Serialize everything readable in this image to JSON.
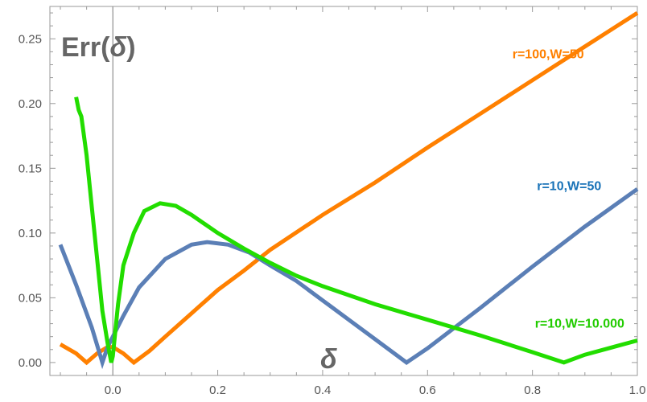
{
  "chart_data": {
    "type": "line",
    "title": "",
    "xlabel": "δ",
    "ylabel": "Err(δ)",
    "ylabel_prefix": "Err(",
    "ylabel_symbol": "δ",
    "ylabel_suffix": ")",
    "xlim": [
      -0.12,
      1.0
    ],
    "ylim": [
      -0.01,
      0.275
    ],
    "x_ticks": [
      0.0,
      0.2,
      0.4,
      0.6,
      0.8,
      1.0
    ],
    "x_tick_labels": [
      "0.0",
      "0.2",
      "0.4",
      "0.6",
      "0.8",
      "1.0"
    ],
    "y_ticks": [
      0.0,
      0.05,
      0.1,
      0.15,
      0.2,
      0.25
    ],
    "y_tick_labels": [
      "0.00",
      "0.05",
      "0.10",
      "0.15",
      "0.20",
      "0.25"
    ],
    "grid": false,
    "legend": "inline labels",
    "series": [
      {
        "name": "r=100,W=50",
        "color": "#ff8000",
        "points": [
          [
            -0.1,
            0.014
          ],
          [
            -0.07,
            0.007
          ],
          [
            -0.05,
            0.0
          ],
          [
            -0.03,
            0.007
          ],
          [
            -0.01,
            0.012
          ],
          [
            0.0,
            0.012
          ],
          [
            0.02,
            0.007
          ],
          [
            0.04,
            0.0
          ],
          [
            0.07,
            0.009
          ],
          [
            0.1,
            0.02
          ],
          [
            0.15,
            0.038
          ],
          [
            0.2,
            0.056
          ],
          [
            0.25,
            0.071
          ],
          [
            0.3,
            0.087
          ],
          [
            0.4,
            0.114
          ],
          [
            0.5,
            0.139
          ],
          [
            0.6,
            0.166
          ],
          [
            0.7,
            0.192
          ],
          [
            0.8,
            0.218
          ],
          [
            0.9,
            0.244
          ],
          [
            1.0,
            0.27
          ]
        ]
      },
      {
        "name": "r=10,W=50",
        "color": "#5b7fb6",
        "points": [
          [
            -0.1,
            0.091
          ],
          [
            -0.07,
            0.06
          ],
          [
            -0.04,
            0.027
          ],
          [
            -0.02,
            0.0
          ],
          [
            -0.01,
            0.012
          ],
          [
            0.0,
            0.02
          ],
          [
            0.02,
            0.036
          ],
          [
            0.05,
            0.058
          ],
          [
            0.1,
            0.08
          ],
          [
            0.15,
            0.091
          ],
          [
            0.18,
            0.093
          ],
          [
            0.22,
            0.091
          ],
          [
            0.26,
            0.085
          ],
          [
            0.3,
            0.075
          ],
          [
            0.35,
            0.063
          ],
          [
            0.4,
            0.048
          ],
          [
            0.45,
            0.033
          ],
          [
            0.5,
            0.018
          ],
          [
            0.56,
            0.0
          ],
          [
            0.6,
            0.011
          ],
          [
            0.7,
            0.042
          ],
          [
            0.8,
            0.074
          ],
          [
            0.9,
            0.105
          ],
          [
            1.0,
            0.134
          ]
        ]
      },
      {
        "name": "r=10,W=10.000",
        "color": "#22dd00",
        "points": [
          [
            -0.07,
            0.205
          ],
          [
            -0.065,
            0.195
          ],
          [
            -0.06,
            0.19
          ],
          [
            -0.05,
            0.16
          ],
          [
            -0.04,
            0.12
          ],
          [
            -0.03,
            0.08
          ],
          [
            -0.02,
            0.04
          ],
          [
            -0.01,
            0.015
          ],
          [
            -0.003,
            0.0
          ],
          [
            0.0,
            0.005
          ],
          [
            0.01,
            0.045
          ],
          [
            0.02,
            0.075
          ],
          [
            0.04,
            0.1
          ],
          [
            0.06,
            0.117
          ],
          [
            0.09,
            0.123
          ],
          [
            0.12,
            0.121
          ],
          [
            0.15,
            0.114
          ],
          [
            0.2,
            0.1
          ],
          [
            0.25,
            0.088
          ],
          [
            0.3,
            0.077
          ],
          [
            0.35,
            0.067
          ],
          [
            0.4,
            0.059
          ],
          [
            0.5,
            0.045
          ],
          [
            0.6,
            0.033
          ],
          [
            0.7,
            0.021
          ],
          [
            0.8,
            0.008
          ],
          [
            0.86,
            0.0
          ],
          [
            0.9,
            0.006
          ],
          [
            1.0,
            0.017
          ]
        ]
      }
    ],
    "annotations": [
      {
        "text": "r=100,W=50",
        "x": 0.83,
        "y": 0.235,
        "color": "#ff8000"
      },
      {
        "text": "r=10,W=50",
        "x": 0.87,
        "y": 0.133,
        "color": "#1a73b8"
      },
      {
        "text": "r=10,W=10.000",
        "x": 0.89,
        "y": 0.027,
        "color": "#22cc00"
      }
    ]
  }
}
